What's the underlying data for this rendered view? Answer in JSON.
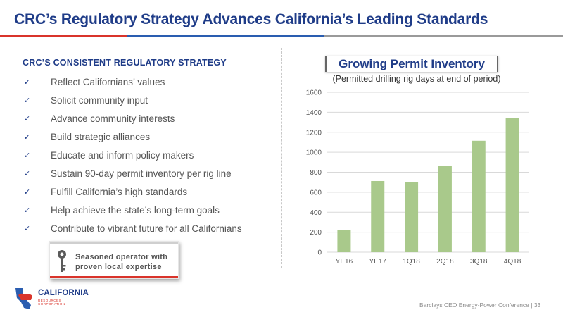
{
  "slide": {
    "title": "CRC’s Regulatory Strategy Advances California’s Leading Standards"
  },
  "strategy": {
    "heading": "CRC’S CONSISTENT REGULATORY STRATEGY",
    "check_icon": "check-icon",
    "items": [
      "Reflect Californians’ values",
      "Solicit community input",
      "Advance community interests",
      "Build strategic alliances",
      "Educate and inform policy makers",
      "Sustain 90-day permit inventory per rig line",
      "Fulfill California’s high standards",
      "Help achieve the state’s long-term goals",
      "Contribute to vibrant future for all Californians"
    ]
  },
  "callout": {
    "icon": "key-icon",
    "line1": "Seasoned operator with",
    "line2": "proven local expertise"
  },
  "logo": {
    "name": "CALIFORNIA",
    "sub": "RESOURCES CORPORATION"
  },
  "footer": {
    "text": "Barclays CEO Energy-Power Conference | 33"
  },
  "colors": {
    "title_blue": "#1f3c88",
    "bar_green": "#a9c98b",
    "accent_red": "#d9342b",
    "accent_blue": "#2a5db0"
  },
  "chart_data": {
    "type": "bar",
    "title": "Growing Permit Inventory",
    "subtitle": "(Permitted drilling rig days at end of period)",
    "categories": [
      "YE16",
      "YE17",
      "1Q18",
      "2Q18",
      "3Q18",
      "4Q18"
    ],
    "values": [
      225,
      712,
      700,
      862,
      1115,
      1340
    ],
    "ylim": [
      0,
      1600
    ],
    "yticks": [
      0,
      200,
      400,
      600,
      800,
      1000,
      1200,
      1400,
      1600
    ],
    "grid": true,
    "xlabel": "",
    "ylabel": ""
  }
}
